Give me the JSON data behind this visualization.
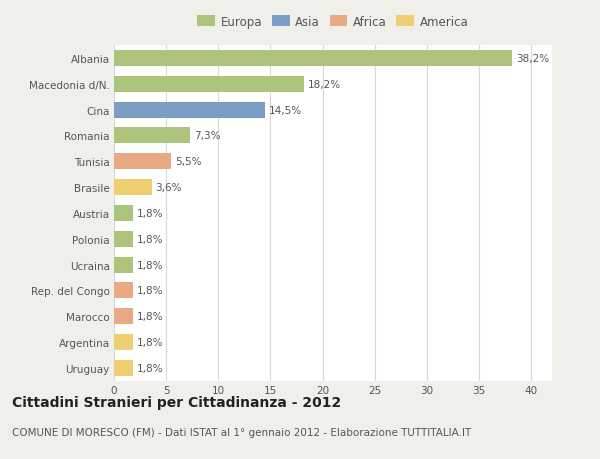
{
  "categories": [
    "Albania",
    "Macedonia d/N.",
    "Cina",
    "Romania",
    "Tunisia",
    "Brasile",
    "Austria",
    "Polonia",
    "Ucraina",
    "Rep. del Congo",
    "Marocco",
    "Argentina",
    "Uruguay"
  ],
  "values": [
    38.2,
    18.2,
    14.5,
    7.3,
    5.5,
    3.6,
    1.8,
    1.8,
    1.8,
    1.8,
    1.8,
    1.8,
    1.8
  ],
  "labels": [
    "38,2%",
    "18,2%",
    "14,5%",
    "7,3%",
    "5,5%",
    "3,6%",
    "1,8%",
    "1,8%",
    "1,8%",
    "1,8%",
    "1,8%",
    "1,8%",
    "1,8%"
  ],
  "colors": [
    "#adc47c",
    "#adc47c",
    "#7b9ec4",
    "#adc47c",
    "#e8aa84",
    "#eecf72",
    "#adc47c",
    "#adc47c",
    "#adc47c",
    "#e8aa84",
    "#e8aa84",
    "#eecf72",
    "#eecf72"
  ],
  "legend_labels": [
    "Europa",
    "Asia",
    "Africa",
    "America"
  ],
  "legend_colors": [
    "#adc47c",
    "#7b9ec4",
    "#e8aa84",
    "#eecf72"
  ],
  "title": "Cittadini Stranieri per Cittadinanza - 2012",
  "subtitle": "COMUNE DI MORESCO (FM) - Dati ISTAT al 1° gennaio 2012 - Elaborazione TUTTITALIA.IT",
  "xlim": [
    0,
    42
  ],
  "xticks": [
    0,
    5,
    10,
    15,
    20,
    25,
    30,
    35,
    40
  ],
  "bg_color": "#f0f0eb",
  "plot_bg_color": "#ffffff",
  "grid_color": "#d8d8d8",
  "title_fontsize": 10,
  "subtitle_fontsize": 7.5,
  "label_fontsize": 7.5,
  "tick_fontsize": 7.5,
  "legend_fontsize": 8.5,
  "bar_height": 0.62
}
